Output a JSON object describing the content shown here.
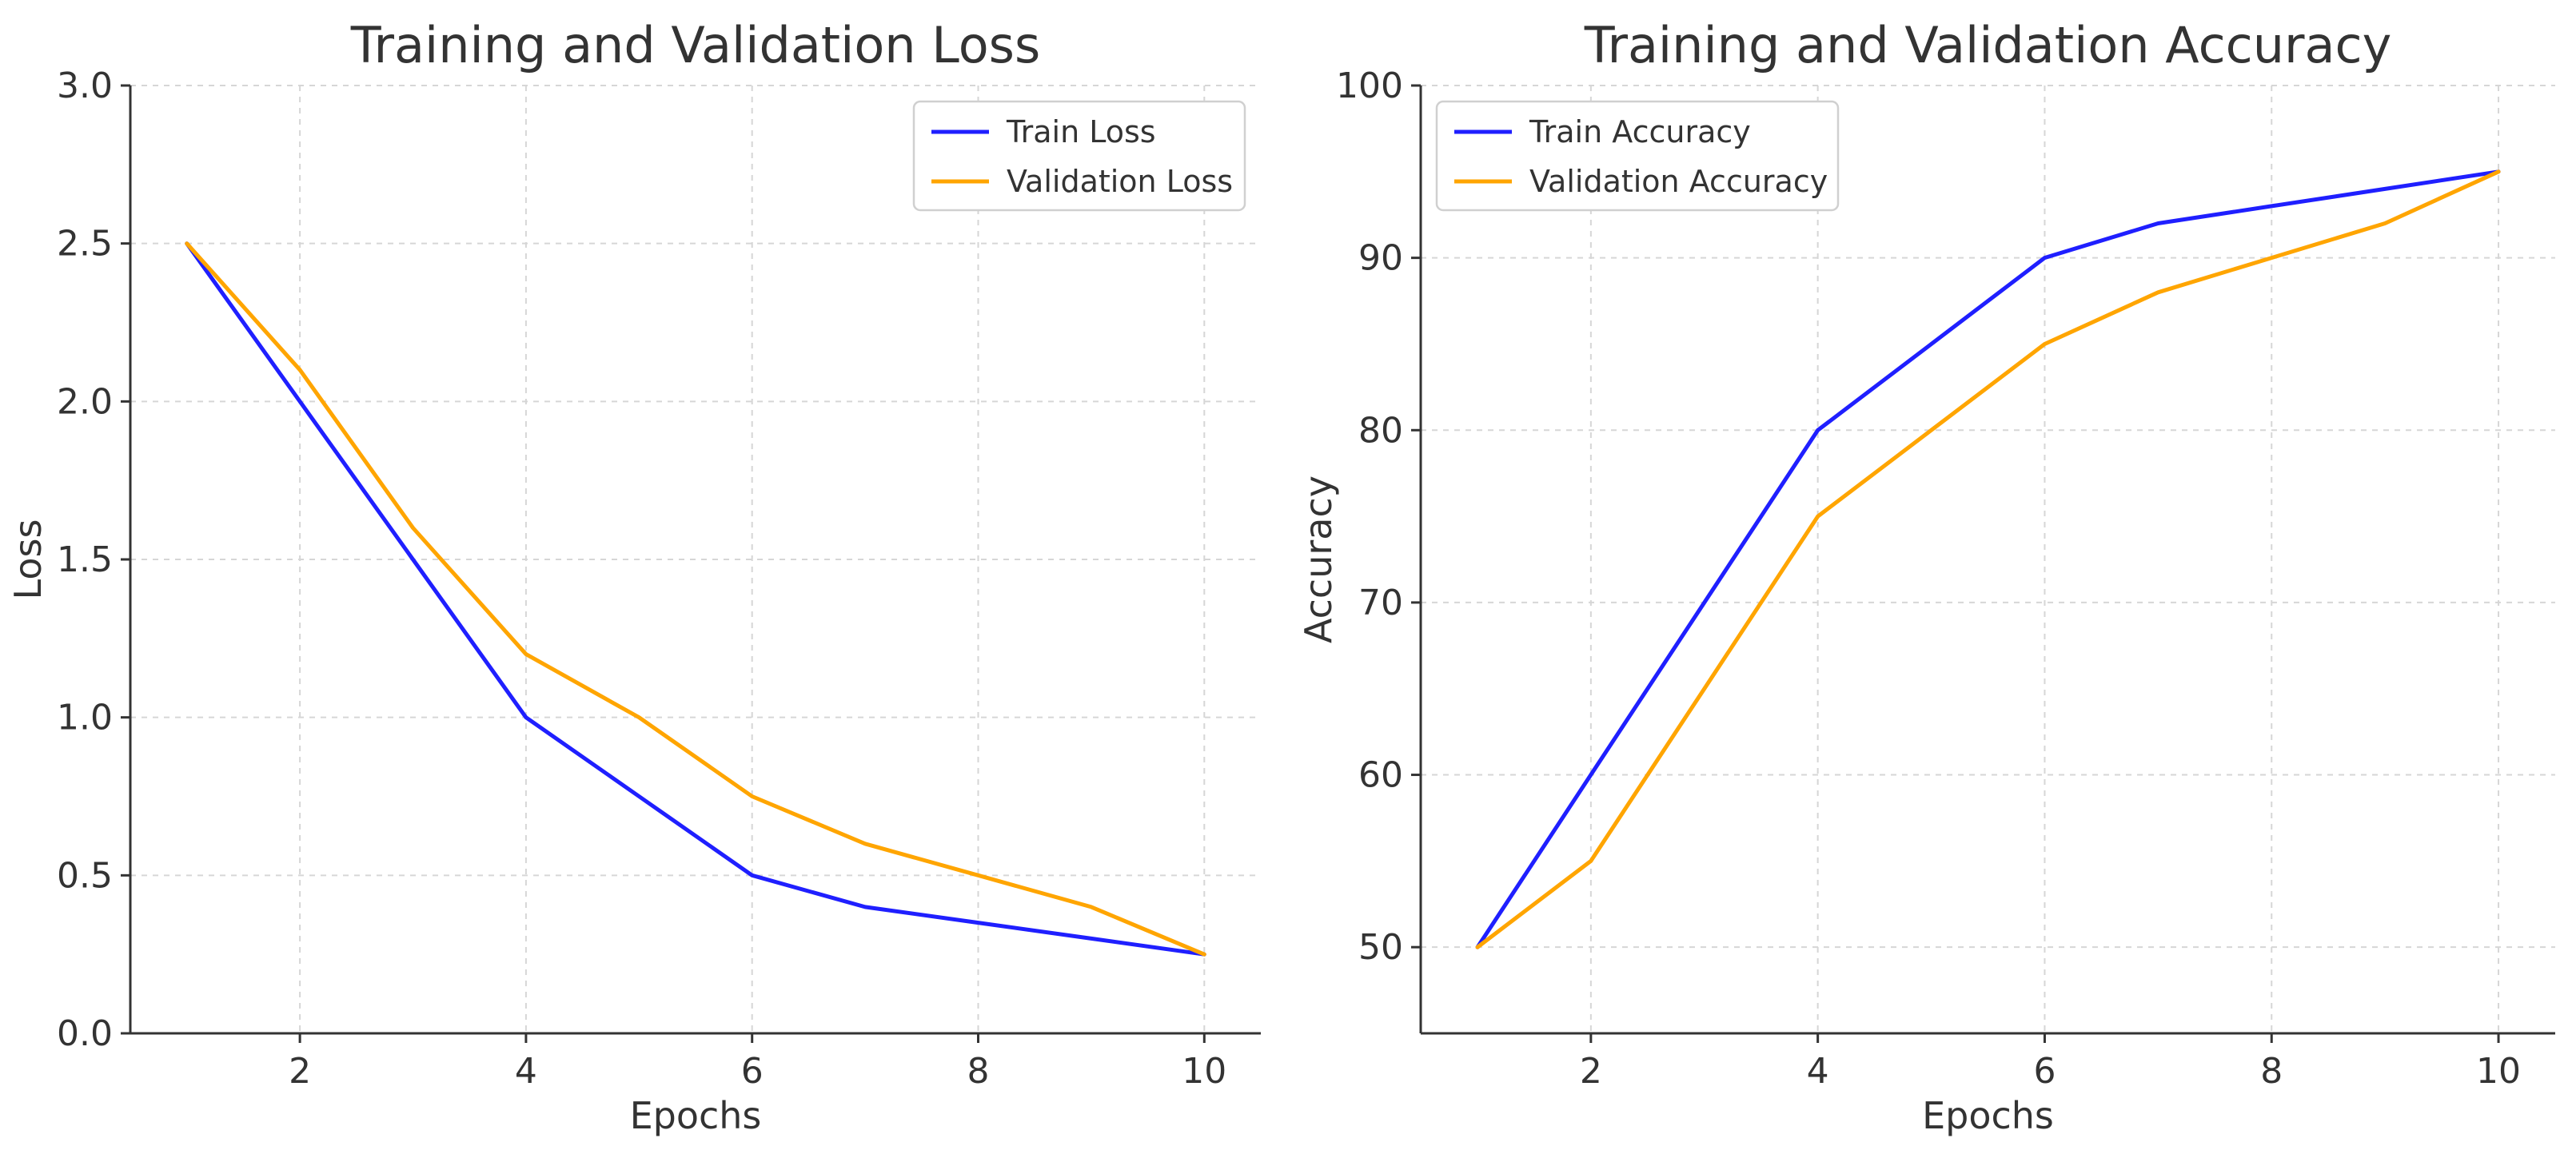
{
  "chart_data": [
    {
      "type": "line",
      "title": "Training and Validation Loss",
      "xlabel": "Epochs",
      "ylabel": "Loss",
      "x": [
        1,
        2,
        3,
        4,
        5,
        6,
        7,
        8,
        9,
        10
      ],
      "xlim": [
        0.5,
        10.5
      ],
      "ylim": [
        0,
        3
      ],
      "xticks": [
        2,
        4,
        6,
        8,
        10
      ],
      "yticks": [
        0,
        0.5,
        1,
        1.5,
        2,
        2.5,
        3
      ],
      "ytick_labels": [
        "0.0",
        "0.5",
        "1.0",
        "1.5",
        "2.0",
        "2.5",
        "3.0"
      ],
      "grid": true,
      "legend_position": "top-right",
      "series": [
        {
          "name": "Train Loss",
          "color": "#1f1fff",
          "values": [
            2.5,
            2.0,
            1.5,
            1.0,
            0.75,
            0.5,
            0.4,
            0.35,
            0.3,
            0.25
          ]
        },
        {
          "name": "Validation Loss",
          "color": "#ffa500",
          "values": [
            2.5,
            2.1,
            1.6,
            1.2,
            1.0,
            0.75,
            0.6,
            0.5,
            0.4,
            0.25
          ]
        }
      ]
    },
    {
      "type": "line",
      "title": "Training and Validation Accuracy",
      "xlabel": "Epochs",
      "ylabel": "Accuracy",
      "x": [
        1,
        2,
        3,
        4,
        5,
        6,
        7,
        8,
        9,
        10
      ],
      "xlim": [
        0.5,
        10.5
      ],
      "ylim": [
        45,
        100
      ],
      "xticks": [
        2,
        4,
        6,
        8,
        10
      ],
      "yticks": [
        50,
        60,
        70,
        80,
        90,
        100
      ],
      "ytick_labels": [
        "50",
        "60",
        "70",
        "80",
        "90",
        "100"
      ],
      "grid": true,
      "legend_position": "top-left",
      "series": [
        {
          "name": "Train Accuracy",
          "color": "#1f1fff",
          "values": [
            50,
            60,
            70,
            80,
            85,
            90,
            92,
            93,
            94,
            95
          ]
        },
        {
          "name": "Validation Accuracy",
          "color": "#ffa500",
          "values": [
            50,
            55,
            65,
            75,
            80,
            85,
            88,
            90,
            92,
            95
          ]
        }
      ]
    }
  ]
}
